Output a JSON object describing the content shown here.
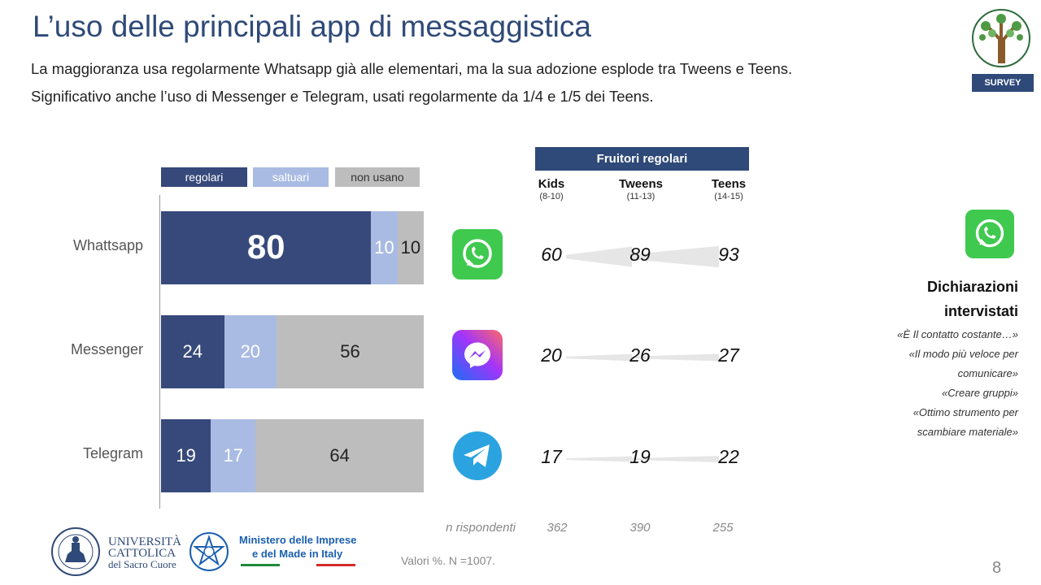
{
  "title": "L’uso delle principali app di messaggistica",
  "subtitle": "La maggioranza usa regolarmente Whatsapp già alle elementari, ma la sua adozione esplode tra Tweens e Teens. Significativo anche l’uso di Messenger e Telegram, usati regolarmente da 1/4 e 1/5 dei Teens.",
  "survey_badge": "SURVEY",
  "colors": {
    "regolari": "#36497a",
    "saltuari": "#a9bbe3",
    "non_usano": "#bdbdbd",
    "accent": "#2f4a78",
    "whatsapp": "#3fc94f",
    "telegram": "#2aa3e0"
  },
  "chart_data": [
    {
      "type": "bar",
      "orientation": "horizontal",
      "stacked": true,
      "categories": [
        "Whattsapp",
        "Messenger",
        "Telegram"
      ],
      "series": [
        {
          "name": "regolari",
          "values": [
            80,
            24,
            19
          ]
        },
        {
          "name": "saltuari",
          "values": [
            10,
            20,
            17
          ]
        },
        {
          "name": "non usano",
          "values": [
            10,
            56,
            64
          ]
        }
      ],
      "xlim": [
        0,
        100
      ],
      "legend_position": "top"
    },
    {
      "type": "table",
      "title": "Fruitori regolari",
      "groups": [
        {
          "name": "Kids",
          "age": "(8-10)",
          "n": "362"
        },
        {
          "name": "Tweens",
          "age": "(11-13)",
          "n": "390"
        },
        {
          "name": "Teens",
          "age": "(14-15)",
          "n": "255"
        }
      ],
      "rows": [
        {
          "app": "Whattsapp",
          "values": [
            60,
            89,
            93
          ]
        },
        {
          "app": "Messenger",
          "values": [
            20,
            26,
            27
          ]
        },
        {
          "app": "Telegram",
          "values": [
            17,
            19,
            22
          ]
        }
      ],
      "n_label": "n rispondenti"
    }
  ],
  "icons": [
    "whatsapp-icon",
    "messenger-icon",
    "telegram-icon"
  ],
  "note": "Valori %. N =1007.",
  "page_number": "8",
  "side_panel": {
    "title_line1": "Dichiarazioni",
    "title_line2": "intervistati",
    "quotes": [
      "«È Il contatto costante…»",
      "«Il modo più veloce per",
      "comunicare»",
      "«Creare gruppi»",
      "«Ottimo strumento per",
      "scambiare materiale»"
    ]
  },
  "logos": {
    "ucsc": [
      "UNIVERSITÀ",
      "CATTOLICA",
      "del Sacro Cuore"
    ],
    "mimit": [
      "Ministero delle Imprese",
      "e del Made in Italy"
    ]
  }
}
